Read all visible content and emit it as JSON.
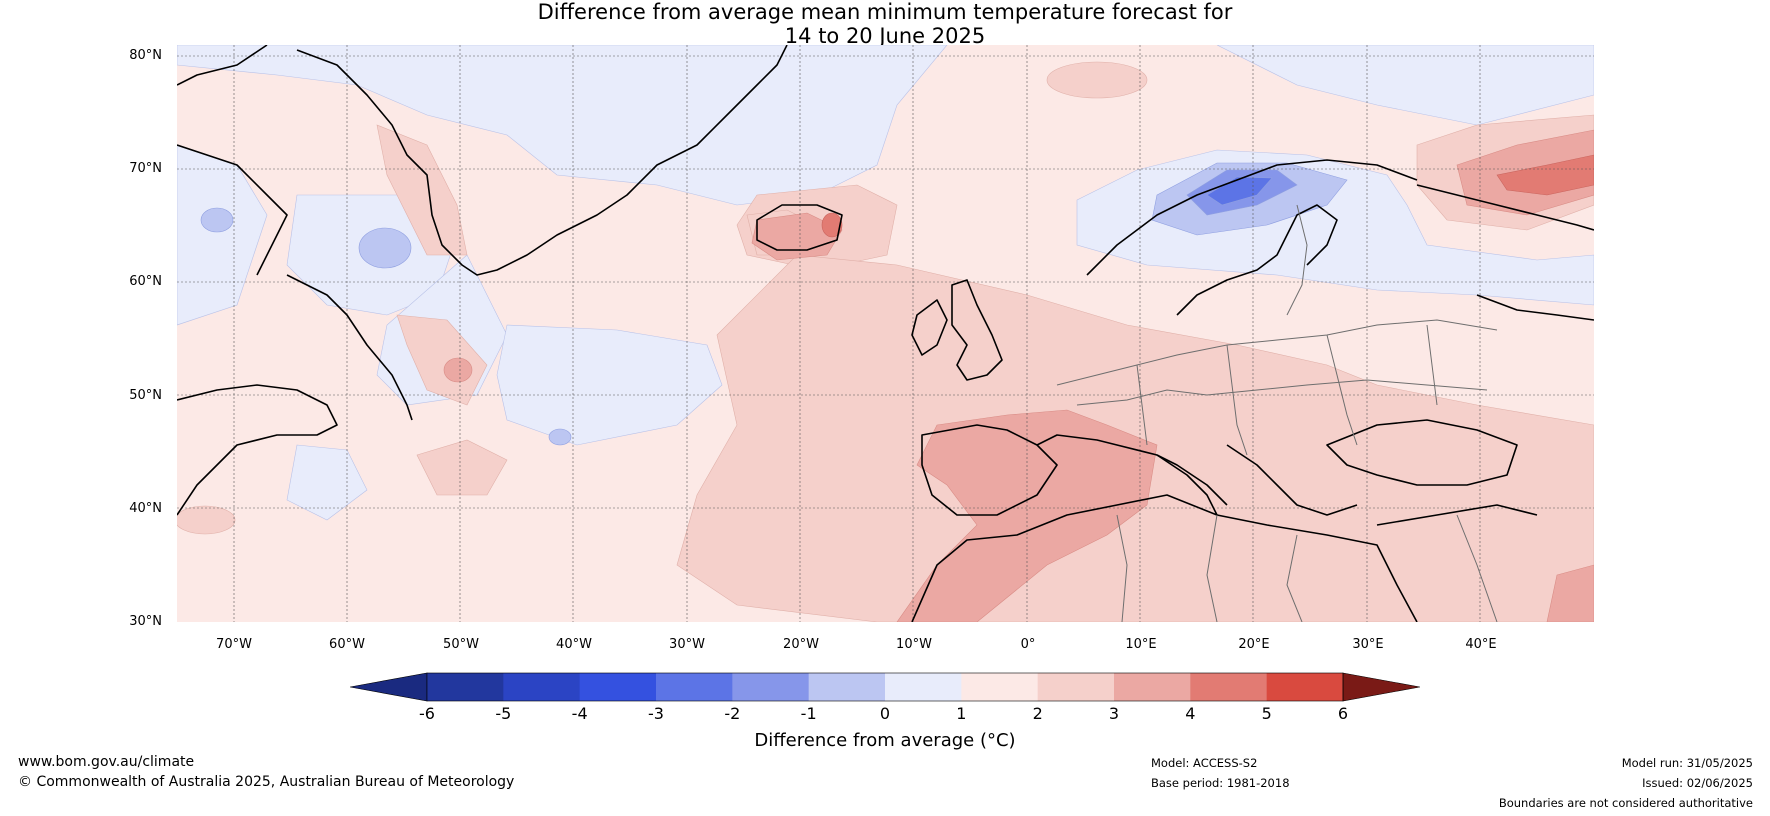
{
  "title": {
    "line1": "Difference from average mean minimum temperature forecast for",
    "line2": "14 to 20 June 2025"
  },
  "map": {
    "lat_labels": [
      "80°N",
      "70°N",
      "60°N",
      "50°N",
      "40°N",
      "30°N"
    ],
    "lon_labels": [
      "70°W",
      "60°W",
      "50°W",
      "40°W",
      "30°W",
      "20°W",
      "10°W",
      "0°",
      "10°E",
      "20°E",
      "30°E",
      "40°E"
    ],
    "extent": {
      "lon_min": -75,
      "lon_max": 50,
      "lat_min": 30,
      "lat_max": 81
    },
    "background_color": "#fce9e6"
  },
  "colorbar": {
    "ticks": [
      "-6",
      "-5",
      "-4",
      "-3",
      "-2",
      "-1",
      "0",
      "1",
      "2",
      "3",
      "4",
      "5",
      "6"
    ],
    "colors": [
      "#22379e",
      "#2b44c4",
      "#3451e0",
      "#5c74e6",
      "#8696ea",
      "#bcc6f2",
      "#e8ecfb",
      "#fce9e6",
      "#f5d0cb",
      "#eba8a3",
      "#e27b73",
      "#d94a3f",
      "#a9261f"
    ],
    "under_color": "#1a2a80",
    "over_color": "#7a1a16",
    "label": "Difference from average (°C)"
  },
  "footer": {
    "website": "www.bom.gov.au/climate",
    "copyright": "© Commonwealth of Australia 2025, Australian Bureau of Meteorology",
    "model": "Model: ACCESS-S2",
    "base_period": "Base period: 1981-2018",
    "model_run": "Model run: 31/05/2025",
    "issued": "Issued: 02/06/2025",
    "disclaimer": "Boundaries are not considered authoritative"
  }
}
